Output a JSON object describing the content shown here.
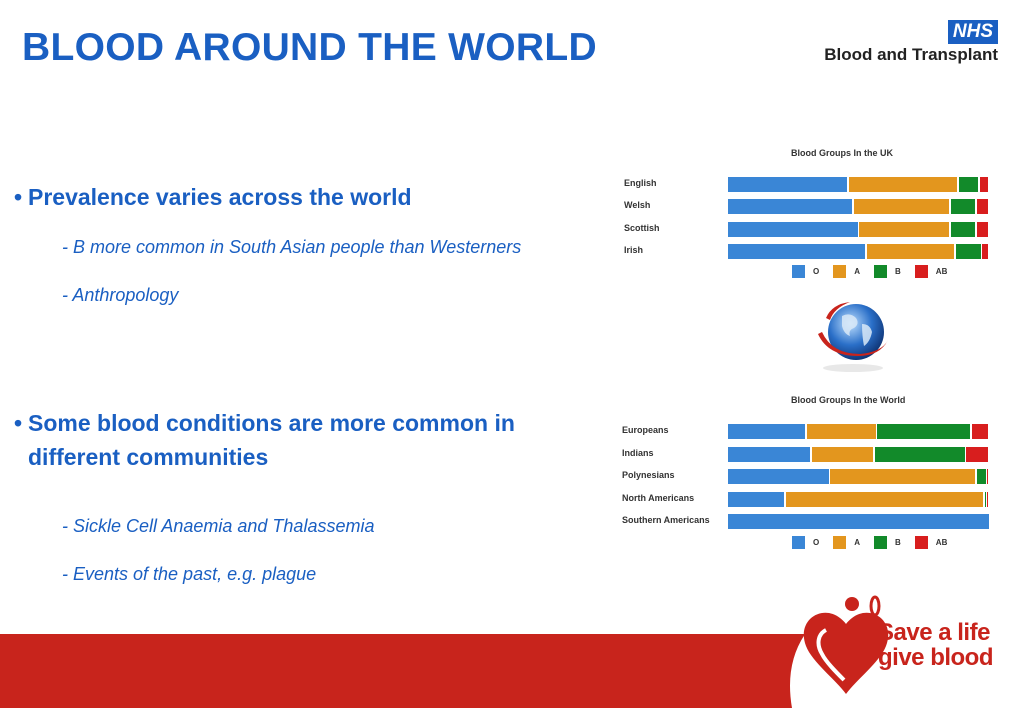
{
  "title": "BLOOD AROUND THE WORLD",
  "logo": {
    "nhs": "NHS",
    "org": "Blood and Transplant"
  },
  "bullets": [
    {
      "marker": "•",
      "text": "Prevalence varies across the world"
    },
    {
      "marker": "•",
      "text": "Some blood conditions are more common in",
      "text2": "different communities"
    }
  ],
  "sub_points": [
    "- B more common in South Asian people than Westerners",
    "- Anthropology",
    "- Sickle Cell Anaemia and Thalassemia",
    "- Events of the past, e.g. plague"
  ],
  "footer_logo": {
    "line1": "Save a life",
    "line2": "give blood"
  },
  "colors": {
    "O": "#3a86d6",
    "A": "#e3961e",
    "B": "#128a2a",
    "AB": "#d81e1e",
    "title": "#1a5fc2",
    "footer": "#c8241c"
  },
  "chart_data": [
    {
      "type": "bar",
      "orientation": "horizontal-stacked",
      "title": "Blood Groups In the UK",
      "categories": [
        "English",
        "Welsh",
        "Scottish",
        "Irish"
      ],
      "series": [
        {
          "name": "O",
          "values": [
            46,
            48,
            50,
            53
          ]
        },
        {
          "name": "A",
          "values": [
            42,
            37,
            35,
            34
          ]
        },
        {
          "name": "B",
          "values": [
            8,
            10,
            10,
            10
          ]
        },
        {
          "name": "AB",
          "values": [
            4,
            5,
            5,
            3
          ]
        }
      ],
      "xlim": [
        0,
        100
      ],
      "legend": "bottom"
    },
    {
      "type": "bar",
      "orientation": "horizontal-stacked",
      "title": "Blood Groups In the World",
      "categories": [
        "Europeans",
        "Indians",
        "Polynesians",
        "North Americans",
        "Southern Americans"
      ],
      "series": [
        {
          "name": "O",
          "values": [
            30,
            32,
            39,
            22,
            100
          ]
        },
        {
          "name": "A",
          "values": [
            27,
            24,
            56,
            76,
            0
          ]
        },
        {
          "name": "B",
          "values": [
            36,
            35,
            4,
            1,
            0
          ]
        },
        {
          "name": "AB",
          "values": [
            7,
            9,
            1,
            1,
            0
          ]
        }
      ],
      "xlim": [
        0,
        100
      ],
      "legend": "bottom"
    }
  ]
}
